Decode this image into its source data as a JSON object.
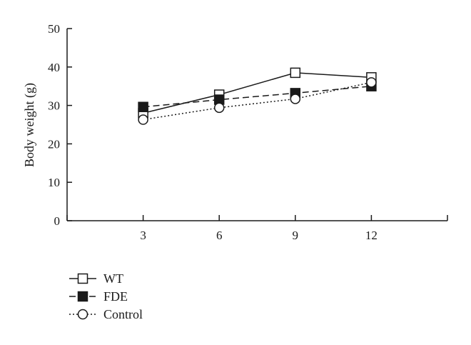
{
  "chart_data": {
    "type": "line",
    "x": [
      3,
      6,
      9,
      12
    ],
    "xlim": [
      0,
      15
    ],
    "ylim": [
      0,
      50
    ],
    "yticks": [
      0,
      10,
      20,
      30,
      40,
      50
    ],
    "xticks": [
      3,
      6,
      9,
      12
    ],
    "ylabel": "Body weight (g)",
    "xlabel": "",
    "grid": false,
    "legend_position": "bottom-left",
    "series": [
      {
        "name": "WT",
        "values": [
          28.0,
          32.8,
          38.5,
          37.3
        ],
        "marker": "open-square",
        "line": "solid",
        "color": "#1a1a1a"
      },
      {
        "name": "FDE",
        "values": [
          29.6,
          31.5,
          33.2,
          35.0
        ],
        "marker": "filled-square",
        "line": "dashed",
        "color": "#1a1a1a"
      },
      {
        "name": "Control",
        "values": [
          26.3,
          29.4,
          31.7,
          36.0
        ],
        "marker": "open-circle",
        "line": "dotted",
        "color": "#1a1a1a"
      }
    ]
  }
}
